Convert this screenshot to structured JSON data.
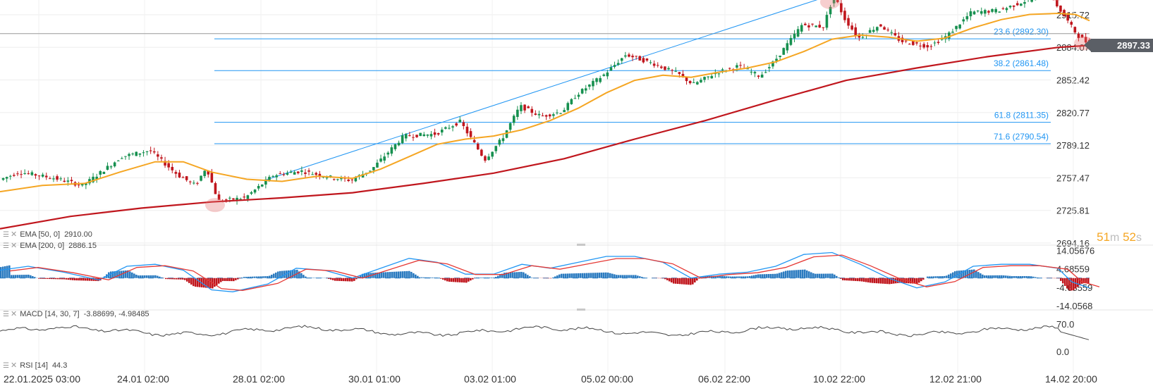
{
  "chart_data": [
    {
      "type": "candlestick",
      "title": "",
      "y_axis_ticks": [
        "2915.72",
        "2884.07",
        "2852.42",
        "2820.77",
        "2789.12",
        "2757.47",
        "2725.81",
        "2694.16"
      ],
      "ylim": [
        2694.16,
        2930
      ],
      "x_axis_ticks": [
        "22.01.2025  03:00",
        "24.01  02:00",
        "28.01  02:00",
        "30.01  01:00",
        "03.02  01:00",
        "05.02  00:00",
        "06.02  22:00",
        "10.02  22:00",
        "12.02  21:00",
        "14.02  20:00"
      ],
      "last_price": "2897.33",
      "countdown": {
        "minutes": "51",
        "m_unit": "m",
        "seconds": "52",
        "s_unit": "s"
      },
      "fibonacci_levels": [
        {
          "label": "23.6 (2892.30)",
          "value": 2892.3
        },
        {
          "label": "38.2 (2861.48)",
          "value": 2861.48
        },
        {
          "label": "61.8 (2811.35)",
          "value": 2811.35
        },
        {
          "label": "71.6 (2790.54)",
          "value": 2790.54
        }
      ],
      "indicators": [
        {
          "name": "EMA [50, 0]",
          "value": "2910.00",
          "color": "#f5a623"
        },
        {
          "name": "EMA [200, 0]",
          "value": "2886.15",
          "color": "#c0161d"
        }
      ],
      "colors": {
        "up": "#16904f",
        "down": "#c0161d",
        "fib": "#2196f3"
      },
      "grid": true
    },
    {
      "type": "macd",
      "label": "MACD [14, 30, 7]",
      "values": [
        "-3.88699",
        "-4.98485"
      ],
      "y_axis_ticks": [
        "14.05676",
        "4.68559",
        "-4.68559",
        "-14.0568"
      ],
      "ylim": [
        -14.0568,
        14.05676
      ],
      "colors": {
        "macd": "#2196f3",
        "signal": "#e53935",
        "hist_pos": "#2b7bc0",
        "hist_neg": "#c0161d"
      }
    },
    {
      "type": "rsi",
      "label": "RSI [14]",
      "value": "44.3",
      "y_axis_ticks": [
        "70.0",
        "0.0"
      ],
      "ylim": [
        0,
        100
      ],
      "colors": {
        "line": "#444444"
      }
    }
  ],
  "icons": [
    "drag-handle-icon",
    "close-icon"
  ]
}
